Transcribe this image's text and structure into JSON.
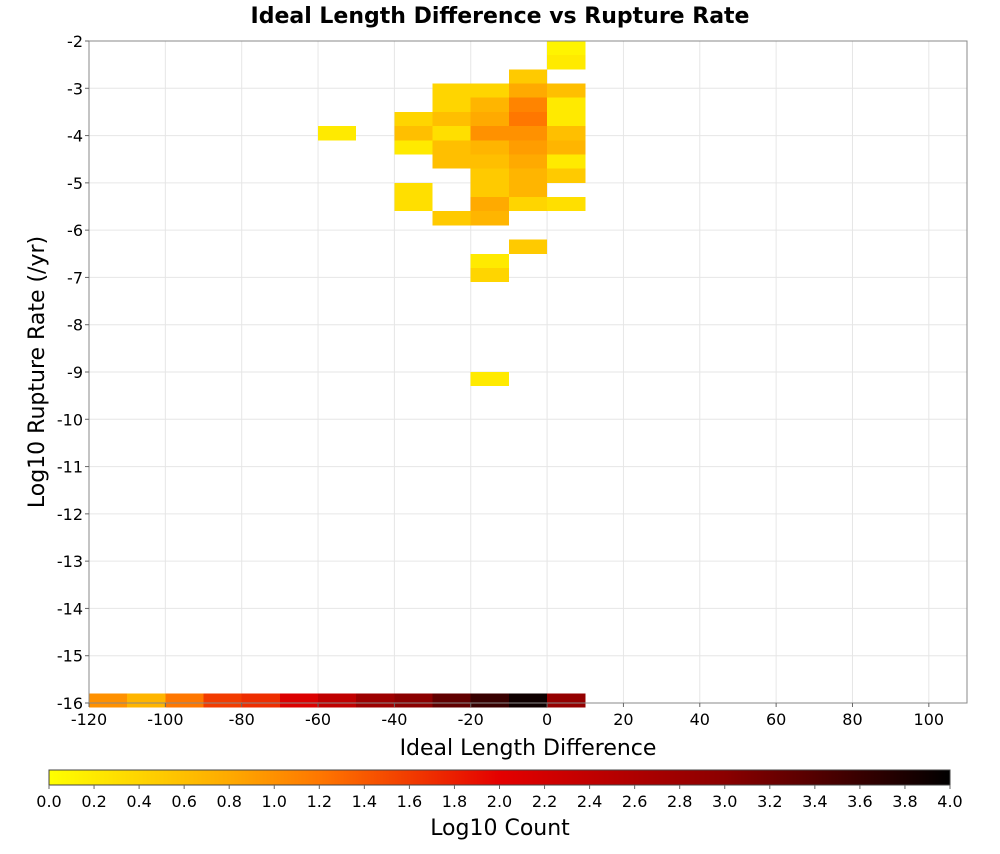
{
  "chart_data": {
    "type": "heatmap",
    "title": "Ideal Length Difference vs Rupture Rate",
    "xlabel": "Ideal Length Difference",
    "ylabel": "Log10 Rupture Rate (/yr)",
    "xlim": [
      -120,
      110
    ],
    "ylim": [
      -16,
      -2
    ],
    "x_ticks": [
      -120,
      -100,
      -80,
      -60,
      -40,
      -20,
      0,
      20,
      40,
      60,
      80,
      100
    ],
    "y_ticks": [
      -2,
      -3,
      -4,
      -5,
      -6,
      -7,
      -8,
      -9,
      -10,
      -11,
      -12,
      -13,
      -14,
      -15,
      -16
    ],
    "grid": true,
    "cell_size": {
      "x": 10,
      "y": 0.3
    },
    "colorbar": {
      "label": "Log10 Count",
      "range": [
        0,
        4
      ],
      "ticks": [
        "0.0",
        "0.2",
        "0.4",
        "0.6",
        "0.8",
        "1.0",
        "1.2",
        "1.4",
        "1.6",
        "1.8",
        "2.0",
        "2.2",
        "2.4",
        "2.6",
        "2.8",
        "3.0",
        "3.2",
        "3.4",
        "3.6",
        "3.8",
        "4.0"
      ],
      "stops": [
        {
          "v": 0.0,
          "color": "#ffff00"
        },
        {
          "v": 0.8,
          "color": "#ffaa00"
        },
        {
          "v": 1.2,
          "color": "#ff7700"
        },
        {
          "v": 2.0,
          "color": "#e40000"
        },
        {
          "v": 3.0,
          "color": "#8b0000"
        },
        {
          "v": 4.0,
          "color": "#000000"
        }
      ],
      "placement": "bottom"
    },
    "cells": [
      {
        "x": 5,
        "y": -2.15,
        "v": 0.1
      },
      {
        "x": 5,
        "y": -2.45,
        "v": 0.2
      },
      {
        "x": -5,
        "y": -2.75,
        "v": 0.5
      },
      {
        "x": -25,
        "y": -3.05,
        "v": 0.4
      },
      {
        "x": -15,
        "y": -3.05,
        "v": 0.4
      },
      {
        "x": -5,
        "y": -3.05,
        "v": 0.8
      },
      {
        "x": 5,
        "y": -3.05,
        "v": 0.6
      },
      {
        "x": -25,
        "y": -3.35,
        "v": 0.4
      },
      {
        "x": -15,
        "y": -3.35,
        "v": 0.7
      },
      {
        "x": -5,
        "y": -3.35,
        "v": 1.1
      },
      {
        "x": 5,
        "y": -3.35,
        "v": 0.2
      },
      {
        "x": -35,
        "y": -3.65,
        "v": 0.4
      },
      {
        "x": -25,
        "y": -3.65,
        "v": 0.6
      },
      {
        "x": -15,
        "y": -3.65,
        "v": 0.8
      },
      {
        "x": -5,
        "y": -3.65,
        "v": 1.2
      },
      {
        "x": 5,
        "y": -3.65,
        "v": 0.2
      },
      {
        "x": -55,
        "y": -3.95,
        "v": 0.2
      },
      {
        "x": -35,
        "y": -3.95,
        "v": 0.6
      },
      {
        "x": -25,
        "y": -3.95,
        "v": 0.3
      },
      {
        "x": -15,
        "y": -3.95,
        "v": 1.0
      },
      {
        "x": -5,
        "y": -3.95,
        "v": 1.0
      },
      {
        "x": 5,
        "y": -3.95,
        "v": 0.6
      },
      {
        "x": -35,
        "y": -4.25,
        "v": 0.2
      },
      {
        "x": -25,
        "y": -4.25,
        "v": 0.6
      },
      {
        "x": -15,
        "y": -4.25,
        "v": 0.7
      },
      {
        "x": -5,
        "y": -4.25,
        "v": 0.9
      },
      {
        "x": 5,
        "y": -4.25,
        "v": 0.7
      },
      {
        "x": -25,
        "y": -4.55,
        "v": 0.6
      },
      {
        "x": -15,
        "y": -4.55,
        "v": 0.6
      },
      {
        "x": -5,
        "y": -4.55,
        "v": 0.8
      },
      {
        "x": 5,
        "y": -4.55,
        "v": 0.2
      },
      {
        "x": -15,
        "y": -4.85,
        "v": 0.5
      },
      {
        "x": -5,
        "y": -4.85,
        "v": 0.7
      },
      {
        "x": 5,
        "y": -4.85,
        "v": 0.5
      },
      {
        "x": -35,
        "y": -5.15,
        "v": 0.3
      },
      {
        "x": -15,
        "y": -5.15,
        "v": 0.5
      },
      {
        "x": -5,
        "y": -5.15,
        "v": 0.7
      },
      {
        "x": -35,
        "y": -5.45,
        "v": 0.3
      },
      {
        "x": -15,
        "y": -5.45,
        "v": 0.8
      },
      {
        "x": -5,
        "y": -5.45,
        "v": 0.4
      },
      {
        "x": 5,
        "y": -5.45,
        "v": 0.3
      },
      {
        "x": -25,
        "y": -5.75,
        "v": 0.5
      },
      {
        "x": -15,
        "y": -5.75,
        "v": 0.7
      },
      {
        "x": -5,
        "y": -6.35,
        "v": 0.5
      },
      {
        "x": -15,
        "y": -6.65,
        "v": 0.2
      },
      {
        "x": -15,
        "y": -6.95,
        "v": 0.4
      },
      {
        "x": -15,
        "y": -9.15,
        "v": 0.2
      },
      {
        "x": -115,
        "y": -15.95,
        "v": 1.0
      },
      {
        "x": -105,
        "y": -15.95,
        "v": 0.7
      },
      {
        "x": -95,
        "y": -15.95,
        "v": 1.2
      },
      {
        "x": -85,
        "y": -15.95,
        "v": 1.6
      },
      {
        "x": -75,
        "y": -15.95,
        "v": 1.7
      },
      {
        "x": -65,
        "y": -15.95,
        "v": 2.1
      },
      {
        "x": -55,
        "y": -15.95,
        "v": 2.4
      },
      {
        "x": -45,
        "y": -15.95,
        "v": 2.8
      },
      {
        "x": -35,
        "y": -15.95,
        "v": 3.0
      },
      {
        "x": -25,
        "y": -15.95,
        "v": 3.3
      },
      {
        "x": -15,
        "y": -15.95,
        "v": 3.6
      },
      {
        "x": -5,
        "y": -15.95,
        "v": 3.9
      },
      {
        "x": 5,
        "y": -15.95,
        "v": 2.9
      }
    ]
  }
}
